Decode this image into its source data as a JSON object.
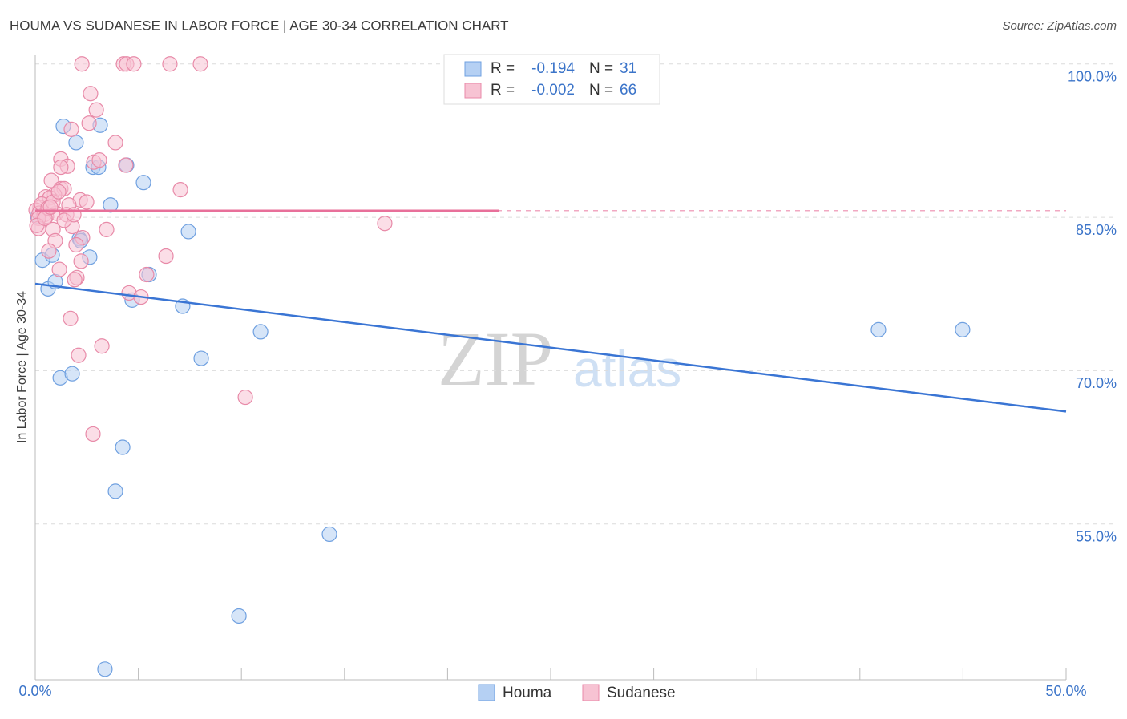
{
  "chart_data": {
    "type": "scatter",
    "title": "HOUMA VS SUDANESE IN LABOR FORCE | AGE 30-34 CORRELATION CHART",
    "source": "Source: ZipAtlas.com",
    "y_label": "In Labor Force | Age 30-34",
    "watermark": [
      "ZIP",
      "atlas"
    ],
    "xlim": [
      0,
      50
    ],
    "ylim": [
      40,
      101
    ],
    "xticks": [
      {
        "value": 0,
        "label": "0.0%"
      },
      {
        "value": 50,
        "label": "50.0%"
      }
    ],
    "xminor_ticks": [
      0,
      5,
      10,
      15,
      20,
      25,
      30,
      35,
      40,
      45,
      50
    ],
    "yticks": [
      {
        "value": 55,
        "label": "55.0%"
      },
      {
        "value": 70,
        "label": "70.0%"
      },
      {
        "value": 85,
        "label": "85.0%"
      },
      {
        "value": 100,
        "label": "100.0%"
      }
    ],
    "grid": true,
    "stats_labels": [
      "R =",
      "N ="
    ],
    "series": [
      {
        "name": "Houma",
        "color": "#6fa0e0",
        "fill": "#b5d0f3",
        "line_color": "#3a75d4",
        "r": -0.194,
        "n": 31,
        "x": [
          0.35,
          0.62,
          0.97,
          0.82,
          1.21,
          1.79,
          1.36,
          1.98,
          2.14,
          2.64,
          2.8,
          3.07,
          3.15,
          3.38,
          3.65,
          3.89,
          4.24,
          4.43,
          4.7,
          5.25,
          5.52,
          7.15,
          7.43,
          8.05,
          9.88,
          10.93,
          14.27,
          40.9,
          44.98,
          0.12,
          2.2
        ],
        "values": [
          80.8,
          78.0,
          78.7,
          81.3,
          69.3,
          69.7,
          93.9,
          92.3,
          82.9,
          81.1,
          89.9,
          89.9,
          94.0,
          40.8,
          86.2,
          58.2,
          62.5,
          90.1,
          76.9,
          88.4,
          79.4,
          76.3,
          83.6,
          71.2,
          46.0,
          73.8,
          54.0,
          74.0,
          74.0,
          85.1,
          82.7
        ],
        "trend": {
          "x": [
            0,
            50
          ],
          "y": [
            78.5,
            66.0
          ]
        }
      },
      {
        "name": "Sudanese",
        "color": "#e88aa8",
        "fill": "#f7c3d3",
        "line_color": "#e8709a",
        "r": -0.002,
        "n": 66,
        "x": [
          2.26,
          4.28,
          4.43,
          4.78,
          6.53,
          8.01,
          2.68,
          2.96,
          1.75,
          2.61,
          3.89,
          1.24,
          1.56,
          1.24,
          2.84,
          3.11,
          4.39,
          0.78,
          7.04,
          1.24,
          1.4,
          0.93,
          0.51,
          0.7,
          2.18,
          2.49,
          1.63,
          0.23,
          0.04,
          0.19,
          0.43,
          0.54,
          0.16,
          1.01,
          1.52,
          0.16,
          0.86,
          1.79,
          3.46,
          16.95,
          2.29,
          1.98,
          0.97,
          0.66,
          6.34,
          2.22,
          1.17,
          5.4,
          2.02,
          1.91,
          4.55,
          5.13,
          1.71,
          2.1,
          3.23,
          10.19,
          2.8,
          0.08,
          0.31,
          0.62,
          0.86,
          1.13,
          0.47,
          1.4,
          1.87,
          0.74
        ],
        "values": [
          100,
          100,
          100,
          100,
          100,
          100,
          97.1,
          95.5,
          93.6,
          94.2,
          92.3,
          90.7,
          90.0,
          89.9,
          90.4,
          90.6,
          90.1,
          88.6,
          87.7,
          87.8,
          87.8,
          87.2,
          87.0,
          86.9,
          86.7,
          86.5,
          86.2,
          85.96,
          85.7,
          85.4,
          85.25,
          85.1,
          84.9,
          85.4,
          85.25,
          83.9,
          83.8,
          84.1,
          83.8,
          84.4,
          83.0,
          82.3,
          82.7,
          81.7,
          81.2,
          80.7,
          79.9,
          79.4,
          79.1,
          78.9,
          77.6,
          77.2,
          75.1,
          71.5,
          72.4,
          67.4,
          63.8,
          84.2,
          86.3,
          85.9,
          86.5,
          87.5,
          84.9,
          84.7,
          85.25,
          86.0
        ],
        "trend": {
          "x": [
            0,
            50
          ],
          "y": [
            85.65,
            85.65
          ],
          "solid_until": 22.5
        }
      }
    ]
  }
}
